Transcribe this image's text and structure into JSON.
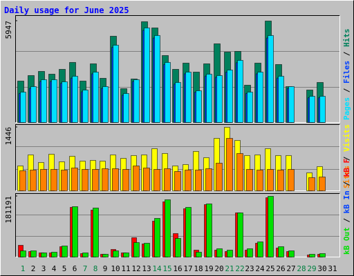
{
  "chart_data": [
    {
      "type": "bar",
      "title": "Daily usage for June 2025",
      "ylim": [
        0,
        5947
      ],
      "yticks": [
        5947
      ],
      "series": [
        {
          "name": "Hits",
          "color": "#00805c",
          "values": [
            2427,
            2751,
            2994,
            2832,
            3115,
            3520,
            2427,
            3439,
            2589,
            5057,
            1982,
            2549,
            5907,
            5543,
            3924,
            3115,
            3479,
            2953,
            3439,
            4612,
            4127,
            4167,
            2185,
            3479,
            5947,
            3398,
            2104,
            0,
            1902,
            2346,
            0
          ]
        },
        {
          "name": "Files",
          "color": "#0040ff",
          "values": [
            1700,
            2000,
            2400,
            2400,
            2300,
            2600,
            1800,
            2850,
            2000,
            4400,
            1600,
            2400,
            5400,
            4950,
            3400,
            2250,
            2850,
            1780,
            2720,
            2650,
            2950,
            3500,
            1700,
            2850,
            4950,
            2600,
            2000,
            0,
            1450,
            1450,
            0
          ]
        },
        {
          "name": "Pages",
          "color": "#00e0ff",
          "values": [
            1780,
            2104,
            2508,
            2508,
            2387,
            2711,
            1902,
            2953,
            2104,
            4531,
            1699,
            2508,
            5543,
            5098,
            3520,
            2346,
            2953,
            1861,
            2832,
            2751,
            3075,
            3641,
            1780,
            2953,
            5098,
            2711,
            2104,
            0,
            1537,
            1537,
            0
          ]
        }
      ]
    },
    {
      "type": "bar",
      "ylim": [
        0,
        1446
      ],
      "yticks": [
        1446
      ],
      "series": [
        {
          "name": "Visits",
          "color": "#ffff00",
          "values": [
            566,
            817,
            644,
            833,
            660,
            786,
            676,
            692,
            676,
            817,
            739,
            802,
            817,
            959,
            849,
            566,
            597,
            896,
            754,
            1194,
            1446,
            1147,
            802,
            817,
            959,
            802,
            802,
            0,
            409,
            550,
            0
          ]
        },
        {
          "name": "Sites",
          "color": "#ff8000",
          "values": [
            456,
            472,
            487,
            487,
            472,
            519,
            487,
            487,
            503,
            503,
            487,
            566,
            519,
            487,
            503,
            440,
            472,
            472,
            503,
            629,
            1194,
            849,
            487,
            472,
            487,
            472,
            487,
            0,
            299,
            314,
            0
          ]
        }
      ]
    },
    {
      "type": "bar",
      "categories": [
        "1",
        "2",
        "3",
        "4",
        "5",
        "6",
        "7",
        "8",
        "9",
        "10",
        "11",
        "12",
        "13",
        "14",
        "15",
        "16",
        "17",
        "18",
        "19",
        "20",
        "21",
        "22",
        "23",
        "24",
        "25",
        "26",
        "27",
        "28",
        "29",
        "30",
        "31"
      ],
      "ylim": [
        0,
        181191
      ],
      "yticks": [
        181191
      ],
      "series": [
        {
          "name": "kB F",
          "color": "#ff0000",
          "values": [
            35003,
            16472,
            12354,
            12354,
            30885,
            148247,
            10295,
            140007,
            8236,
            22649,
            12354,
            57652,
            39121,
            107068,
            164720,
            70006,
            144128,
            20590,
            156484,
            20590,
            16472,
            131776,
            20590,
            41180,
            177073,
            26767,
            16472,
            0,
            6177,
            8236,
            0
          ]
        },
        {
          "name": "kB In",
          "color": "#0040ff",
          "values": [
            0,
            0,
            0,
            0,
            0,
            0,
            0,
            0,
            0,
            0,
            0,
            0,
            0,
            0,
            0,
            0,
            0,
            0,
            0,
            0,
            0,
            0,
            0,
            0,
            0,
            0,
            0,
            0,
            0,
            0,
            0
          ]
        },
        {
          "name": "kB Out",
          "color": "#00e000",
          "values": [
            18531,
            18531,
            12354,
            14413,
            32944,
            150307,
            12354,
            146189,
            8236,
            18531,
            12354,
            43239,
            41180,
            115304,
            170896,
            55593,
            148247,
            14413,
            158543,
            24708,
            20590,
            131776,
            24708,
            45298,
            181191,
            30885,
            18531,
            0,
            8236,
            10295,
            0
          ]
        }
      ]
    }
  ]
}
